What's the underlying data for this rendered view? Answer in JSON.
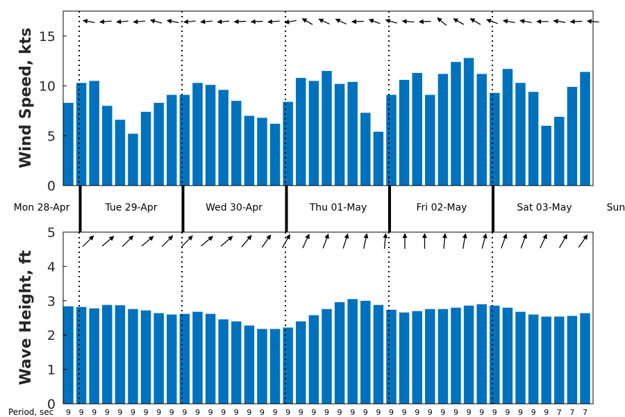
{
  "chart_data": [
    {
      "type": "bar",
      "ylabel": "Wind Speed, kts",
      "ylim": [
        0,
        17.5
      ],
      "yticks": [
        "0",
        "5",
        "10",
        "15"
      ],
      "bar_color": "#0072BD",
      "values": [
        8.3,
        10.3,
        10.5,
        8.0,
        6.6,
        5.2,
        7.4,
        8.3,
        9.1,
        9.1,
        10.3,
        10.1,
        9.6,
        8.5,
        7.0,
        6.8,
        6.2,
        8.4,
        10.8,
        10.5,
        11.5,
        10.2,
        10.4,
        7.3,
        5.4,
        9.1,
        10.6,
        11.3,
        9.1,
        11.2,
        12.4,
        12.8,
        11.2,
        9.3,
        11.7,
        10.3,
        9.4,
        6.0,
        6.9,
        9.9,
        11.4
      ],
      "direction_arrows": "wind direction arrows along the top of the panel"
    },
    {
      "type": "bar",
      "ylabel": "Wave Height, ft",
      "ylim": [
        0,
        5
      ],
      "yticks": [
        "0",
        "1",
        "2",
        "3",
        "4",
        "5"
      ],
      "bar_color": "#0072BD",
      "values": [
        2.84,
        2.82,
        2.78,
        2.88,
        2.87,
        2.76,
        2.72,
        2.64,
        2.6,
        2.62,
        2.68,
        2.62,
        2.46,
        2.4,
        2.28,
        2.18,
        2.18,
        2.22,
        2.4,
        2.58,
        2.76,
        2.96,
        3.05,
        3.0,
        2.88,
        2.74,
        2.66,
        2.7,
        2.76,
        2.76,
        2.8,
        2.86,
        2.9,
        2.86,
        2.8,
        2.68,
        2.6,
        2.54,
        2.54,
        2.56,
        2.64
      ],
      "period_label": "Period, sec",
      "periods": [
        "9",
        "9",
        "9",
        "9",
        "9",
        "9",
        "9",
        "9",
        "9",
        "9",
        "9",
        "9",
        "9",
        "9",
        "9",
        "9",
        "9",
        "9",
        "9",
        "9",
        "9",
        "9",
        "9",
        "9",
        "9",
        "9",
        "9",
        "9",
        "9",
        "9",
        "9",
        "9",
        "9",
        "9",
        "9",
        "9",
        "9",
        "9",
        "7",
        "7",
        "7"
      ],
      "direction_arrows": "wave direction arrows along the top of the panel"
    }
  ],
  "day_labels": [
    "Mon 28-Apr",
    "Tue 29-Apr",
    "Wed 30-Apr",
    "Thu 01-May",
    "Fri 02-May",
    "Sat 03-May",
    "Sun"
  ],
  "wind_arrow_angles": [
    -170,
    175,
    175,
    175,
    -165,
    -170,
    175,
    175,
    175,
    178,
    178,
    175,
    170,
    -150,
    -155,
    -155,
    178,
    -160,
    -165,
    -175,
    178,
    -140,
    -150,
    -150,
    -160,
    -170,
    -170,
    180,
    -172,
    178,
    -175
  ],
  "wave_arrow_angles": [
    -45,
    -40,
    -45,
    -40,
    -45,
    -45,
    -40,
    -40,
    -50,
    -55,
    -60,
    -65,
    -70,
    -72,
    -78,
    -85,
    -90,
    -90,
    -85,
    -80,
    -75,
    -70,
    -70,
    -65,
    -60,
    -55
  ],
  "colors": {
    "bar": "#0072BD",
    "axis": "#000000",
    "background": "#ffffff"
  }
}
